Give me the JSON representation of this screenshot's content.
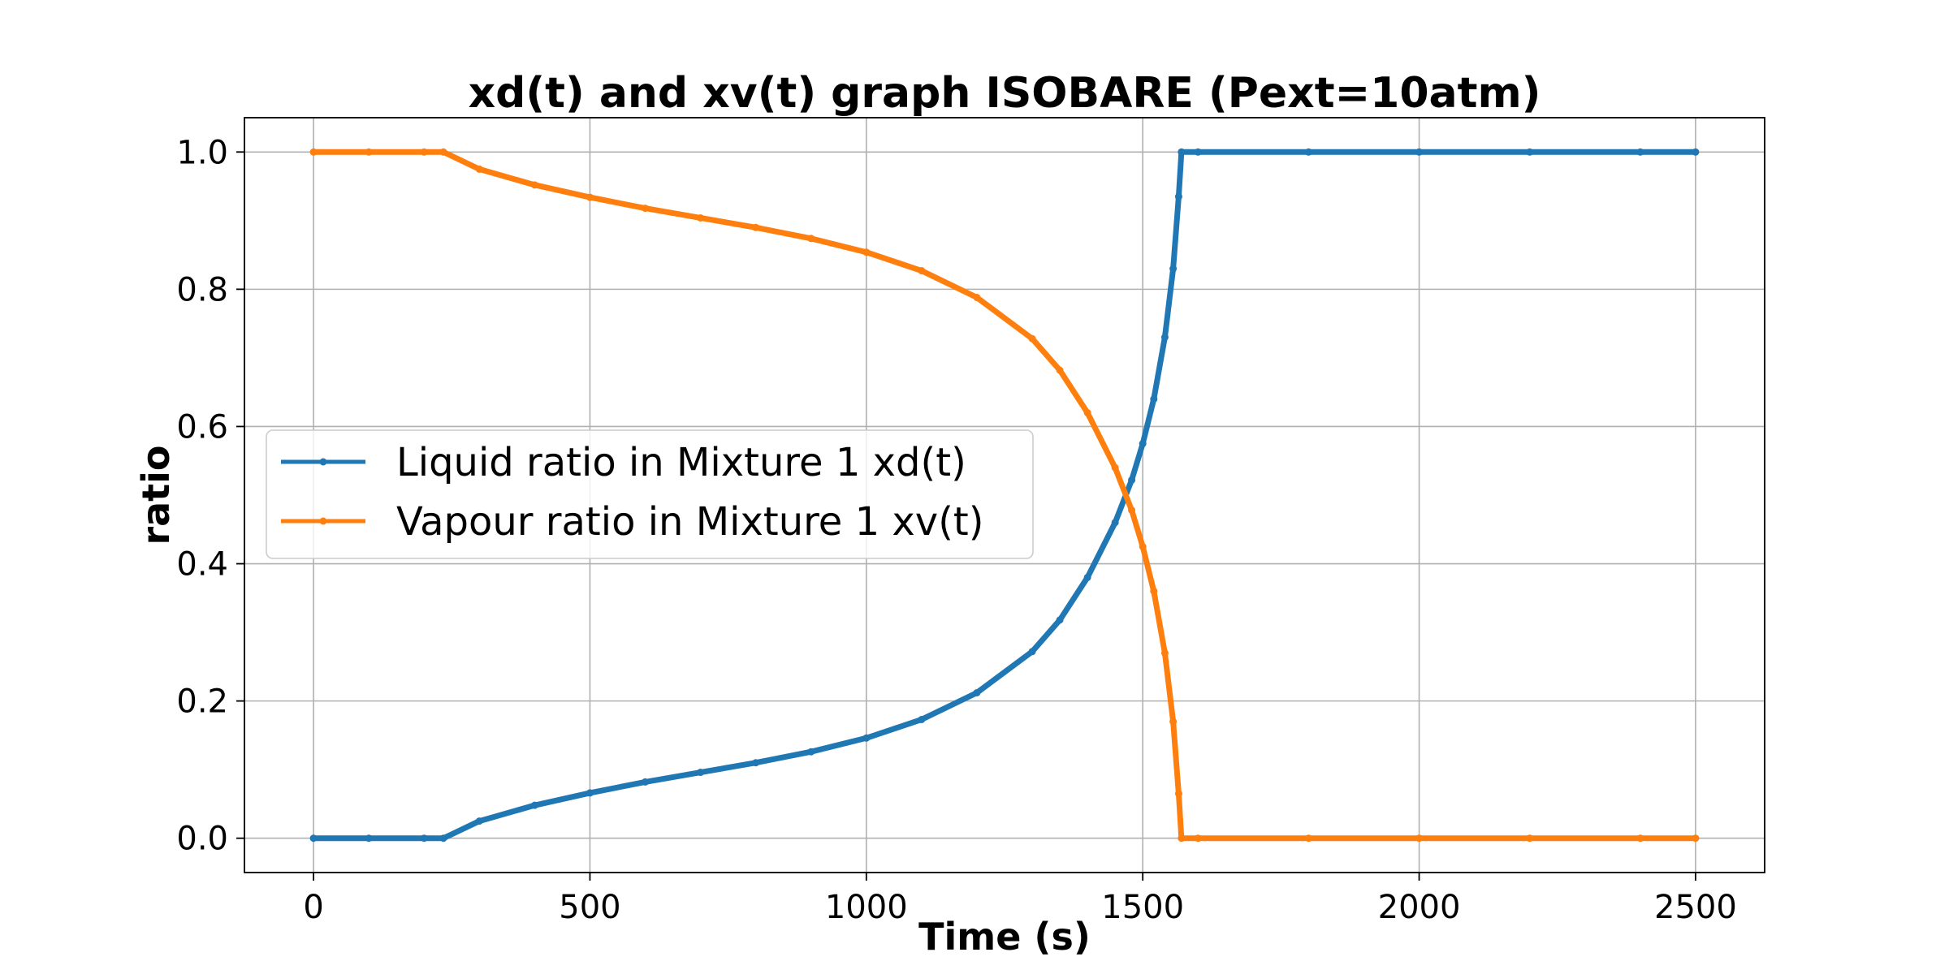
{
  "chart_data": {
    "type": "line",
    "title": "xd(t) and xv(t) graph ISOBARE (Pext=10atm)",
    "xlabel": "Time (s)",
    "ylabel": "ratio",
    "xlim": [
      -125,
      2625
    ],
    "ylim": [
      -0.05,
      1.05
    ],
    "xticks": [
      0,
      500,
      1000,
      1500,
      2000,
      2500
    ],
    "xtick_labels": [
      "0",
      "500",
      "1000",
      "1500",
      "2000",
      "2500"
    ],
    "yticks": [
      0.0,
      0.2,
      0.4,
      0.6,
      0.8,
      1.0
    ],
    "ytick_labels": [
      "0.0",
      "0.2",
      "0.4",
      "0.6",
      "0.8",
      "1.0"
    ],
    "grid": true,
    "legend_position": "center-left",
    "series": [
      {
        "name": "Liquid ratio in Mixture 1 xd(t)",
        "color": "#1f77b4",
        "x": [
          0,
          100,
          200,
          235,
          300,
          400,
          500,
          600,
          700,
          800,
          900,
          1000,
          1100,
          1200,
          1300,
          1350,
          1400,
          1450,
          1480,
          1500,
          1520,
          1540,
          1555,
          1565,
          1570,
          1600,
          1800,
          2000,
          2200,
          2400,
          2500
        ],
        "y": [
          0.0,
          0.0,
          0.0,
          0.0,
          0.025,
          0.048,
          0.066,
          0.082,
          0.096,
          0.11,
          0.126,
          0.146,
          0.173,
          0.212,
          0.272,
          0.318,
          0.38,
          0.46,
          0.522,
          0.575,
          0.64,
          0.73,
          0.83,
          0.935,
          1.0,
          1.0,
          1.0,
          1.0,
          1.0,
          1.0,
          1.0
        ]
      },
      {
        "name": "Vapour ratio in Mixture 1 xv(t)",
        "color": "#ff7f0e",
        "x": [
          0,
          100,
          200,
          235,
          300,
          400,
          500,
          600,
          700,
          800,
          900,
          1000,
          1100,
          1200,
          1300,
          1350,
          1400,
          1450,
          1480,
          1500,
          1520,
          1540,
          1555,
          1565,
          1570,
          1600,
          1800,
          2000,
          2200,
          2400,
          2500
        ],
        "y": [
          1.0,
          1.0,
          1.0,
          1.0,
          0.975,
          0.952,
          0.934,
          0.918,
          0.904,
          0.89,
          0.874,
          0.854,
          0.827,
          0.788,
          0.728,
          0.682,
          0.62,
          0.54,
          0.478,
          0.425,
          0.36,
          0.27,
          0.17,
          0.065,
          0.0,
          0.0,
          0.0,
          0.0,
          0.0,
          0.0,
          0.0
        ]
      }
    ]
  }
}
